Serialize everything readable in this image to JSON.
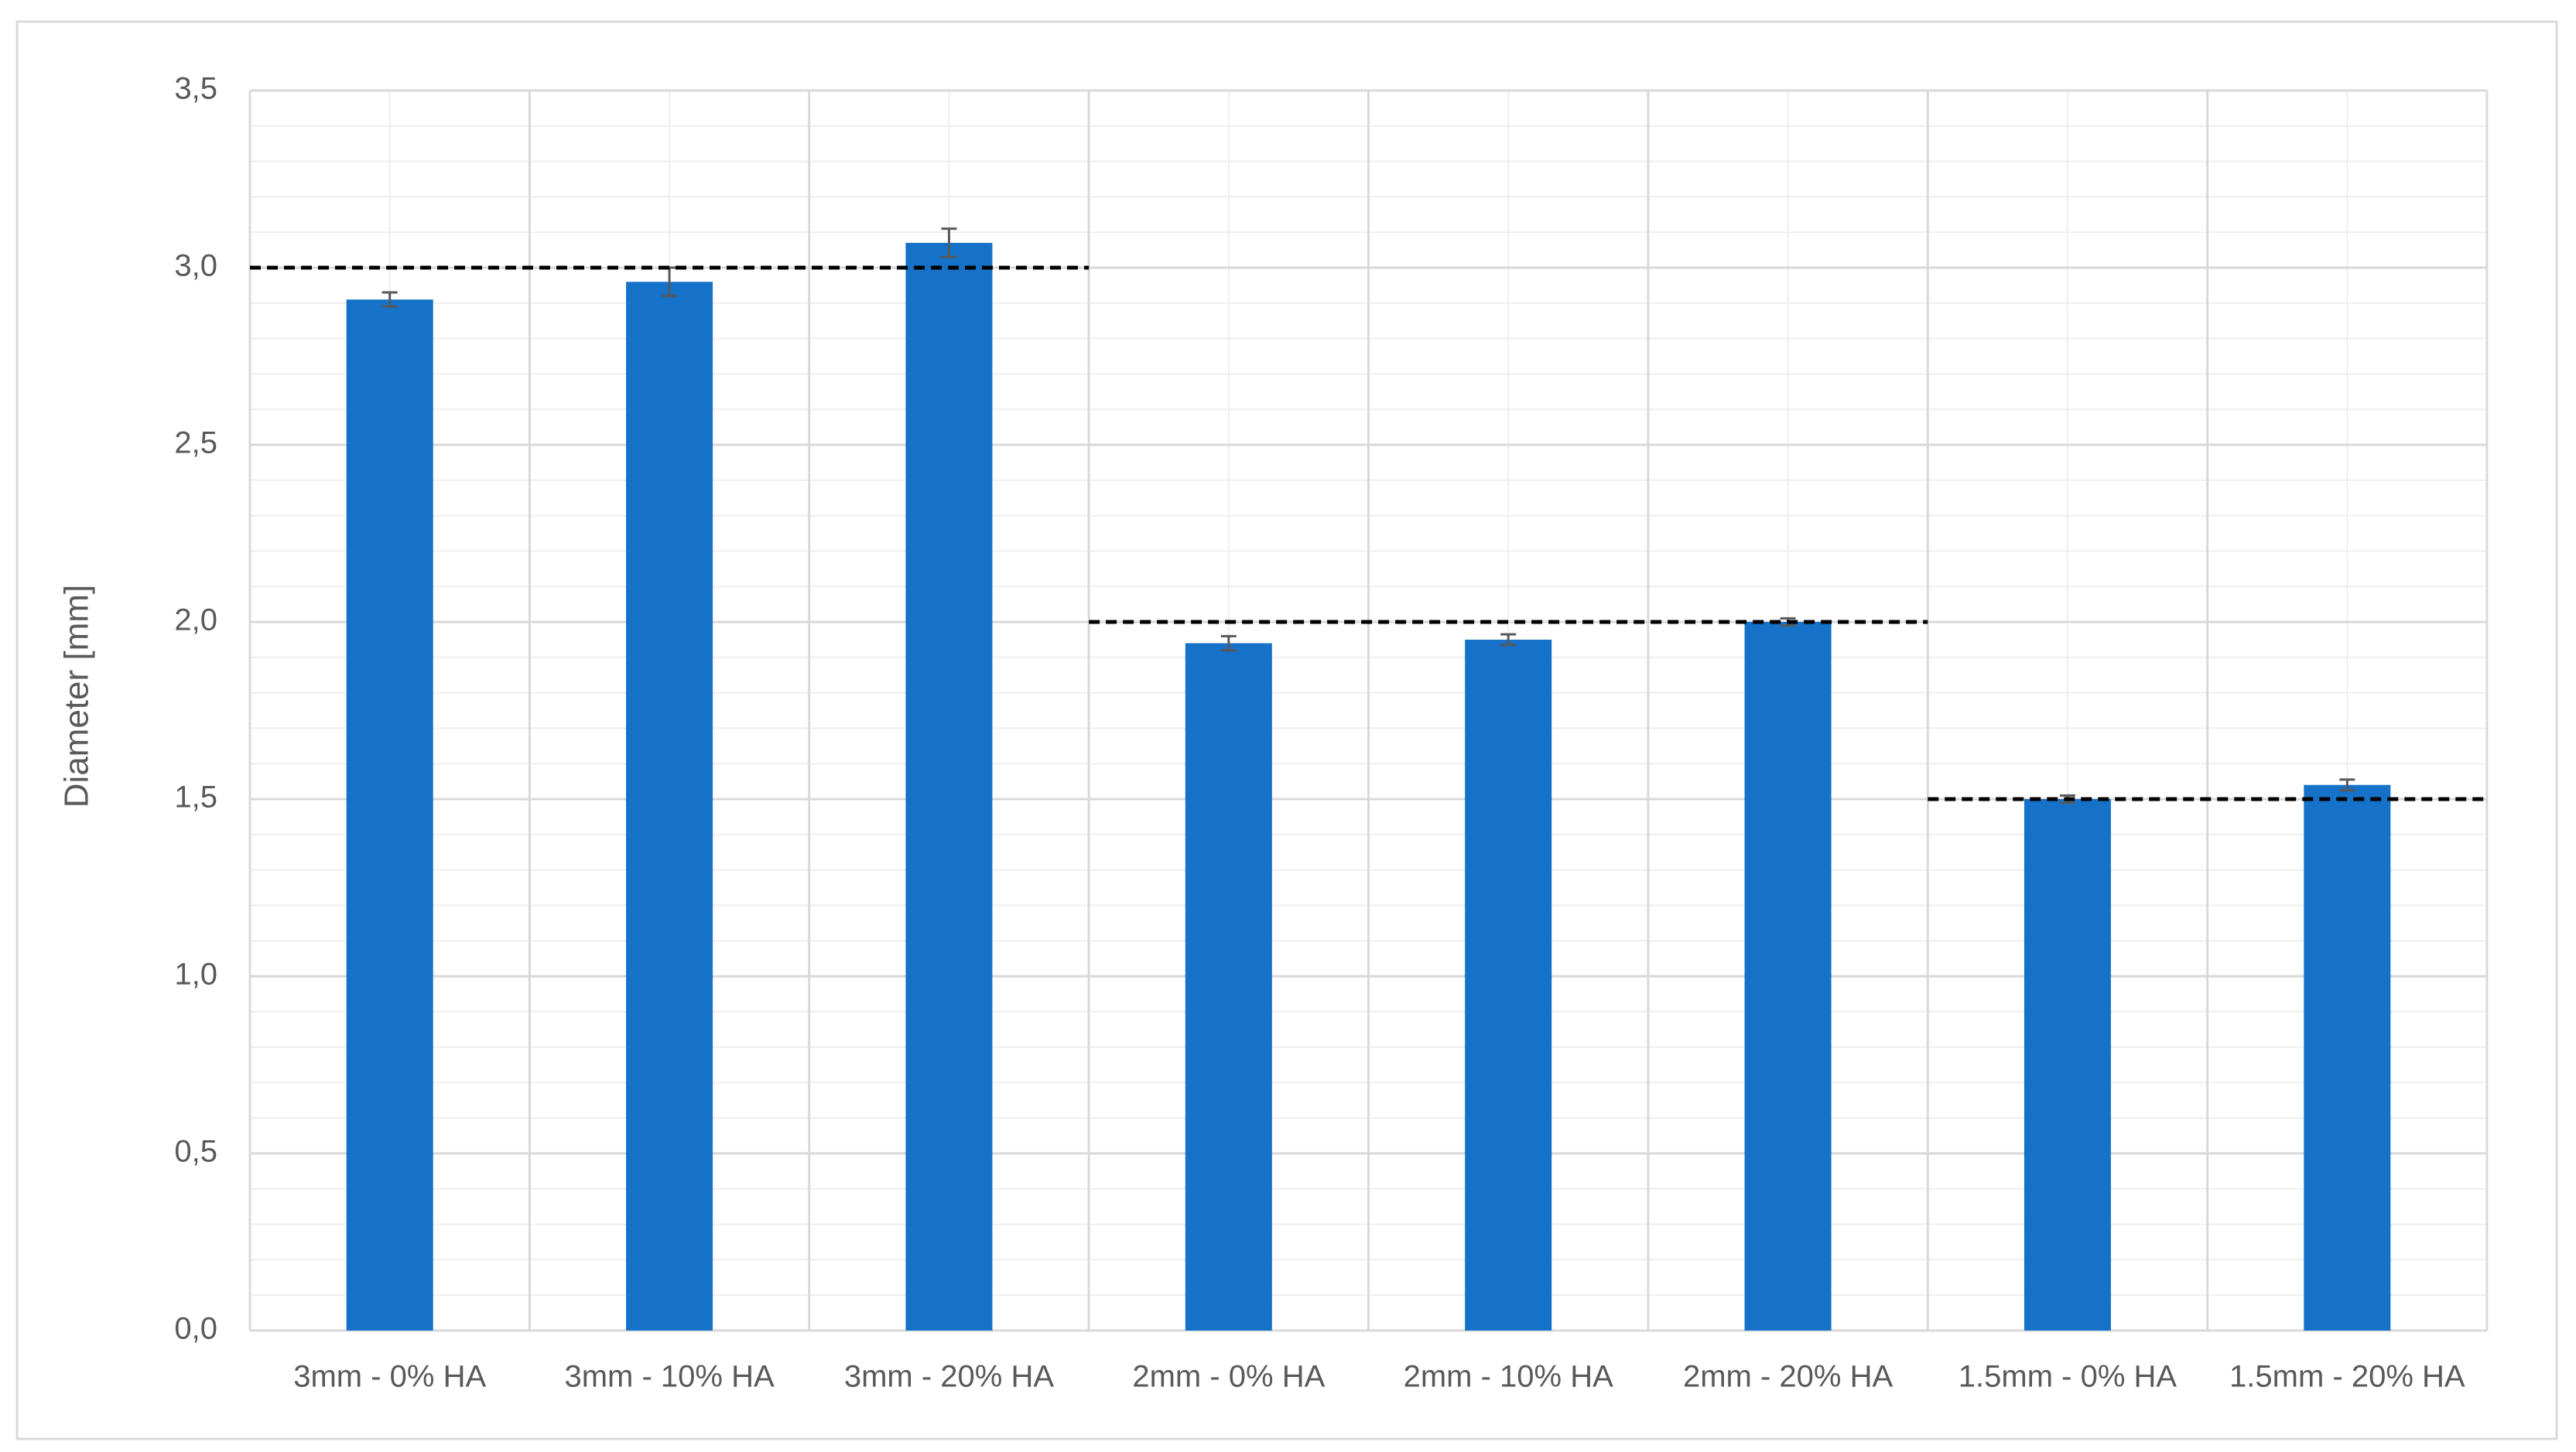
{
  "chart_data": {
    "type": "bar",
    "y_label": "Diameter [mm]",
    "categories": [
      "3mm - 0% HA",
      "3mm - 10% HA",
      "3mm - 20% HA",
      "2mm - 0% HA",
      "2mm - 10% HA",
      "2mm - 20% HA",
      "1.5mm - 0% HA",
      "1.5mm - 20% HA"
    ],
    "values": [
      2.91,
      2.96,
      3.07,
      1.94,
      1.95,
      2.0,
      1.5,
      1.54
    ],
    "errors": [
      0.02,
      0.04,
      0.04,
      0.02,
      0.015,
      0.01,
      0.01,
      0.015
    ],
    "reference_values": [
      3,
      3,
      3,
      2,
      2,
      2,
      1.5,
      1.5
    ],
    "color": "#1572c8",
    "error_color": "#595959",
    "reference_color": "#000000",
    "ylim": [
      0,
      3.5
    ],
    "yticks": [
      {
        "value": 0,
        "label": "0,0"
      },
      {
        "value": 0.5,
        "label": "0,5"
      },
      {
        "value": 1,
        "label": "1,0"
      },
      {
        "value": 1.5,
        "label": "1,5"
      },
      {
        "value": 2,
        "label": "2,0"
      },
      {
        "value": 2.5,
        "label": "2,5"
      },
      {
        "value": 3,
        "label": "3,0"
      },
      {
        "value": 3.5,
        "label": "3,5"
      }
    ],
    "grid": true
  }
}
